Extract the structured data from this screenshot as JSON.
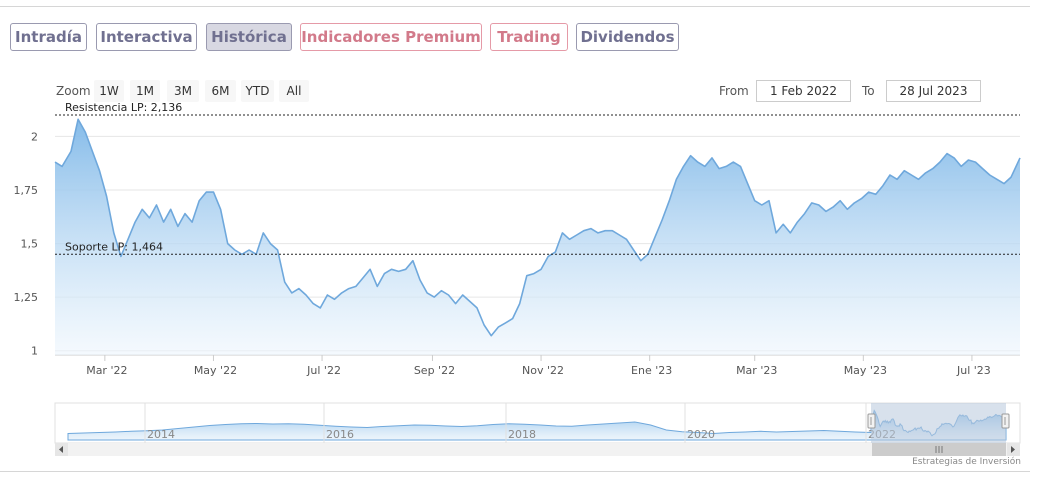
{
  "tabs": [
    {
      "label": "Intradía",
      "state": "normal"
    },
    {
      "label": "Interactiva",
      "state": "normal"
    },
    {
      "label": "Histórica",
      "state": "active"
    },
    {
      "label": "Indicadores Premium",
      "state": "premium"
    },
    {
      "label": "Trading",
      "state": "premium"
    },
    {
      "label": "Dividendos",
      "state": "normal"
    }
  ],
  "zoom": {
    "label": "Zoom",
    "buttons": [
      "1W",
      "1M",
      "3M",
      "6M",
      "YTD",
      "All"
    ]
  },
  "range": {
    "from_label": "From",
    "from_value": "1 Feb 2022",
    "to_label": "To",
    "to_value": "28 Jul 2023"
  },
  "credits": "Estrategias de Inversión",
  "colors": {
    "line": "#6fa8dc",
    "area_top": "#7fb8e8",
    "area_bottom": "#eef6fd",
    "grid": "#e6e6e6",
    "navigator_mask": "#b8c8dc",
    "tab_border": "#9a9ab0",
    "tab_premium": "#d27a8a"
  },
  "chart_data": {
    "type": "area",
    "xlabel": "",
    "ylabel": "",
    "ylim": [
      0.98,
      2.1
    ],
    "yticks": [
      1,
      1.25,
      1.5,
      1.75,
      2
    ],
    "ytick_labels": [
      "1",
      "1,25",
      "1,5",
      "1,75",
      "2"
    ],
    "xtick_labels": [
      "Mar '22",
      "May '22",
      "Jul '22",
      "Sep '22",
      "Nov '22",
      "Ene '23",
      "Mar '23",
      "May '23",
      "Jul '23"
    ],
    "xtick_dates": [
      "2022-03-01",
      "2022-05-01",
      "2022-07-01",
      "2022-09-01",
      "2022-11-01",
      "2023-01-01",
      "2023-03-01",
      "2023-05-01",
      "2023-07-01"
    ],
    "annotations": [
      {
        "label": "Resistencia LP: 2,136",
        "value": 2.1
      },
      {
        "label": "Soporte LP: 1,464",
        "value": 1.45
      }
    ],
    "series": [
      {
        "x": [
          "2022-02-01",
          "2022-02-05",
          "2022-02-10",
          "2022-02-14",
          "2022-02-18",
          "2022-02-22",
          "2022-02-26",
          "2022-03-02",
          "2022-03-06",
          "2022-03-10",
          "2022-03-14",
          "2022-03-18",
          "2022-03-22",
          "2022-03-26",
          "2022-03-30",
          "2022-04-03",
          "2022-04-07",
          "2022-04-11",
          "2022-04-15",
          "2022-04-19",
          "2022-04-23",
          "2022-04-27",
          "2022-05-01",
          "2022-05-05",
          "2022-05-09",
          "2022-05-13",
          "2022-05-17",
          "2022-05-21",
          "2022-05-25",
          "2022-05-29",
          "2022-06-02",
          "2022-06-06",
          "2022-06-10",
          "2022-06-14",
          "2022-06-18",
          "2022-06-22",
          "2022-06-26",
          "2022-06-30",
          "2022-07-04",
          "2022-07-08",
          "2022-07-12",
          "2022-07-16",
          "2022-07-20",
          "2022-07-24",
          "2022-07-28",
          "2022-08-01",
          "2022-08-05",
          "2022-08-09",
          "2022-08-13",
          "2022-08-17",
          "2022-08-21",
          "2022-08-25",
          "2022-08-29",
          "2022-09-02",
          "2022-09-06",
          "2022-09-10",
          "2022-09-14",
          "2022-09-18",
          "2022-09-22",
          "2022-09-26",
          "2022-09-30",
          "2022-10-04",
          "2022-10-08",
          "2022-10-12",
          "2022-10-16",
          "2022-10-20",
          "2022-10-24",
          "2022-10-28",
          "2022-11-01",
          "2022-11-05",
          "2022-11-09",
          "2022-11-13",
          "2022-11-17",
          "2022-11-21",
          "2022-11-25",
          "2022-11-29",
          "2022-12-03",
          "2022-12-07",
          "2022-12-11",
          "2022-12-15",
          "2022-12-19",
          "2022-12-23",
          "2022-12-27",
          "2022-12-31",
          "2023-01-04",
          "2023-01-08",
          "2023-01-12",
          "2023-01-16",
          "2023-01-20",
          "2023-01-24",
          "2023-01-28",
          "2023-02-01",
          "2023-02-05",
          "2023-02-09",
          "2023-02-13",
          "2023-02-17",
          "2023-02-21",
          "2023-02-25",
          "2023-03-01",
          "2023-03-05",
          "2023-03-09",
          "2023-03-13",
          "2023-03-17",
          "2023-03-21",
          "2023-03-25",
          "2023-03-29",
          "2023-04-02",
          "2023-04-06",
          "2023-04-10",
          "2023-04-14",
          "2023-04-18",
          "2023-04-22",
          "2023-04-26",
          "2023-04-30",
          "2023-05-04",
          "2023-05-08",
          "2023-05-12",
          "2023-05-16",
          "2023-05-20",
          "2023-05-24",
          "2023-05-28",
          "2023-06-01",
          "2023-06-05",
          "2023-06-09",
          "2023-06-13",
          "2023-06-17",
          "2023-06-21",
          "2023-06-25",
          "2023-06-29",
          "2023-07-03",
          "2023-07-07",
          "2023-07-11",
          "2023-07-15",
          "2023-07-19",
          "2023-07-23",
          "2023-07-28"
        ],
        "values": [
          1.88,
          1.86,
          1.93,
          2.08,
          2.02,
          1.93,
          1.84,
          1.72,
          1.55,
          1.44,
          1.52,
          1.6,
          1.66,
          1.62,
          1.68,
          1.6,
          1.66,
          1.58,
          1.64,
          1.6,
          1.7,
          1.74,
          1.74,
          1.66,
          1.5,
          1.47,
          1.45,
          1.47,
          1.45,
          1.55,
          1.5,
          1.47,
          1.32,
          1.27,
          1.29,
          1.26,
          1.22,
          1.2,
          1.26,
          1.24,
          1.27,
          1.29,
          1.3,
          1.34,
          1.38,
          1.3,
          1.36,
          1.38,
          1.37,
          1.38,
          1.42,
          1.33,
          1.27,
          1.25,
          1.28,
          1.26,
          1.22,
          1.26,
          1.23,
          1.2,
          1.12,
          1.07,
          1.11,
          1.13,
          1.15,
          1.22,
          1.35,
          1.36,
          1.38,
          1.44,
          1.46,
          1.55,
          1.52,
          1.54,
          1.56,
          1.57,
          1.55,
          1.56,
          1.56,
          1.54,
          1.52,
          1.47,
          1.42,
          1.45,
          1.53,
          1.61,
          1.7,
          1.8,
          1.86,
          1.91,
          1.88,
          1.86,
          1.9,
          1.85,
          1.86,
          1.88,
          1.86,
          1.78,
          1.7,
          1.68,
          1.7,
          1.55,
          1.59,
          1.55,
          1.6,
          1.64,
          1.69,
          1.68,
          1.65,
          1.67,
          1.7,
          1.66,
          1.69,
          1.71,
          1.74,
          1.73,
          1.77,
          1.82,
          1.8,
          1.84,
          1.82,
          1.8,
          1.83,
          1.85,
          1.88,
          1.92,
          1.9,
          1.86,
          1.89,
          1.88,
          1.85,
          1.82,
          1.8,
          1.78,
          1.81,
          1.9
        ]
      }
    ],
    "navigator": {
      "xtick_labels": [
        "2014",
        "2016",
        "2018",
        "2020",
        "2022"
      ]
    }
  }
}
